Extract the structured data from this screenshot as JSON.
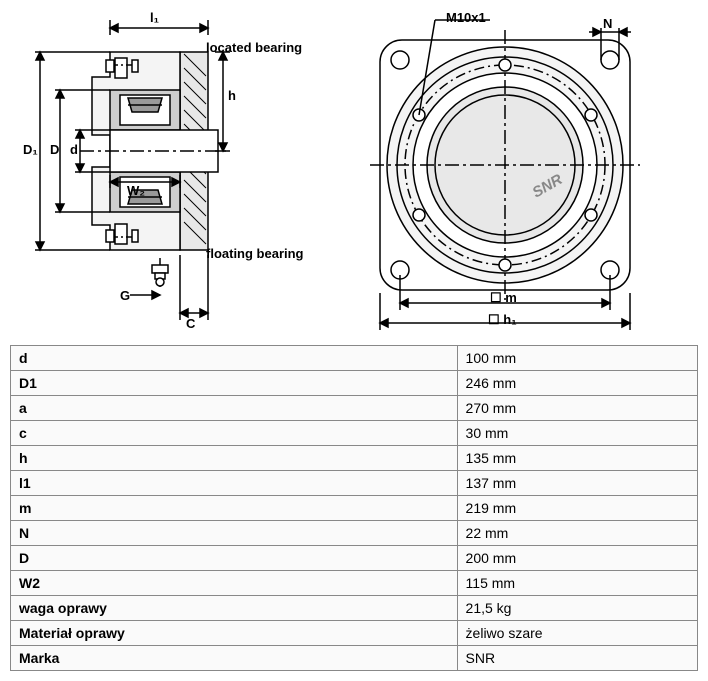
{
  "diagram": {
    "labels": {
      "l1": "l₁",
      "located_bearing": "located bearing",
      "h": "h",
      "D1": "D₁",
      "D": "D",
      "d": "d",
      "W2": "W₂",
      "floating_bearing": "floating bearing",
      "G": "G",
      "C": "C",
      "M10x1": "M10x1",
      "N": "N",
      "SNR": "SNR",
      "box_m": "☐ m",
      "box_h1": "☐ h₁"
    },
    "colors": {
      "stroke": "#000000",
      "fill_dark": "#9a9a9a",
      "fill_mid": "#cfcfcf",
      "fill_light": "#f4f4f4",
      "bg": "#ffffff"
    },
    "stroke_width": 1.5
  },
  "table": {
    "rows": [
      {
        "key": "d",
        "val": "100 mm"
      },
      {
        "key": "D1",
        "val": "246 mm"
      },
      {
        "key": "a",
        "val": "270 mm"
      },
      {
        "key": "c",
        "val": "30 mm"
      },
      {
        "key": "h",
        "val": "135 mm"
      },
      {
        "key": "l1",
        "val": "137 mm"
      },
      {
        "key": "m",
        "val": "219 mm"
      },
      {
        "key": "N",
        "val": "22 mm"
      },
      {
        "key": "D",
        "val": "200 mm"
      },
      {
        "key": "W2",
        "val": "115 mm"
      },
      {
        "key": "waga oprawy",
        "val": "21,5 kg"
      },
      {
        "key": "Materiał oprawy",
        "val": "żeliwo szare"
      },
      {
        "key": "Marka",
        "val": "SNR"
      }
    ]
  }
}
